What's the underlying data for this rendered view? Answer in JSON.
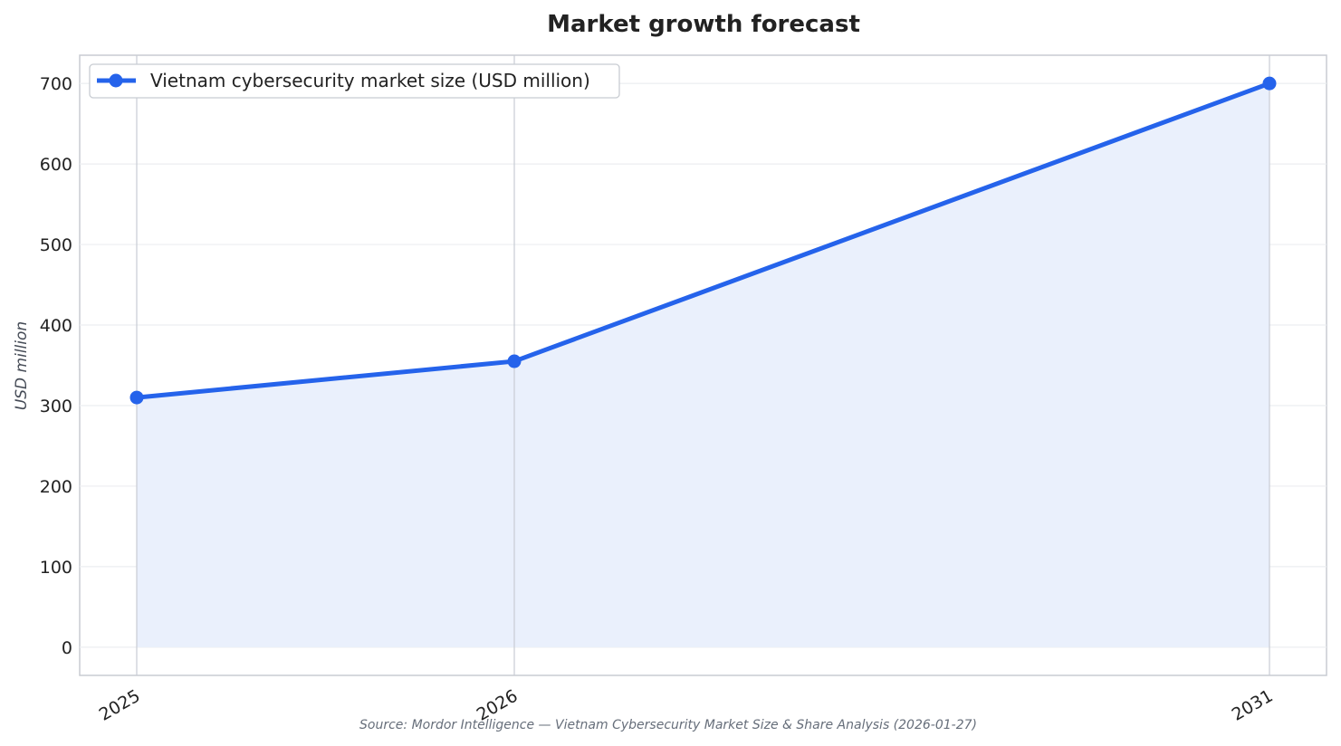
{
  "chart_data": {
    "type": "line",
    "title": "Market growth forecast",
    "xlabel": "",
    "ylabel": "USD million",
    "categories": [
      "2025",
      "2026",
      "2031"
    ],
    "series": [
      {
        "name": "Vietnam cybersecurity market size (USD million)",
        "values": [
          310,
          355,
          700
        ],
        "color": "#2563eb",
        "fill": "#eaf0fc"
      }
    ],
    "ylim": [
      -35,
      735
    ],
    "yticks": [
      0,
      100,
      200,
      300,
      400,
      500,
      600,
      700
    ],
    "grid": true,
    "legend": "top-left",
    "x_positions": [
      0,
      1,
      3
    ]
  },
  "source": "Source: Mordor Intelligence — Vietnam Cybersecurity Market Size & Share Analysis (2026-01-27)"
}
